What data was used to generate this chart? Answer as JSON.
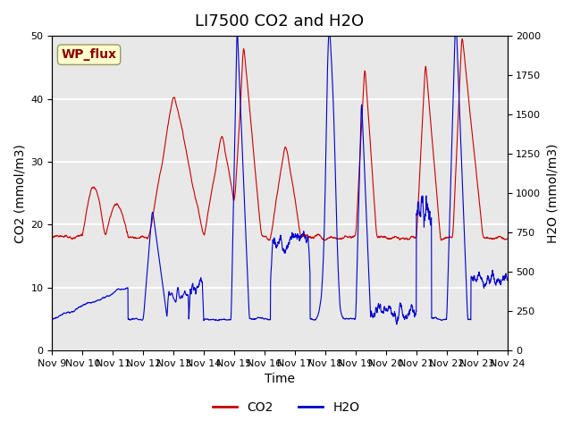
{
  "title": "LI7500 CO2 and H2O",
  "xlabel": "Time",
  "ylabel_left": "CO2 (mmol/m3)",
  "ylabel_right": "H2O (mmol/m3)",
  "annotation": "WP_flux",
  "co2_ylim": [
    0,
    50
  ],
  "h2o_ylim": [
    0,
    2000
  ],
  "xtick_labels": [
    "Nov 9",
    "Nov 10",
    "Nov 11",
    "Nov 12",
    "Nov 13",
    "Nov 14",
    "Nov 15",
    "Nov 16",
    "Nov 17",
    "Nov 18",
    "Nov 19",
    "Nov 20",
    "Nov 21",
    "Nov 22",
    "Nov 23",
    "Nov 24"
  ],
  "co2_color": "#cc0000",
  "h2o_color": "#0000cc",
  "background_color": "#e8e8e8",
  "grid_color": "#ffffff",
  "title_fontsize": 13,
  "axis_fontsize": 10,
  "tick_fontsize": 8,
  "legend_fontsize": 10
}
